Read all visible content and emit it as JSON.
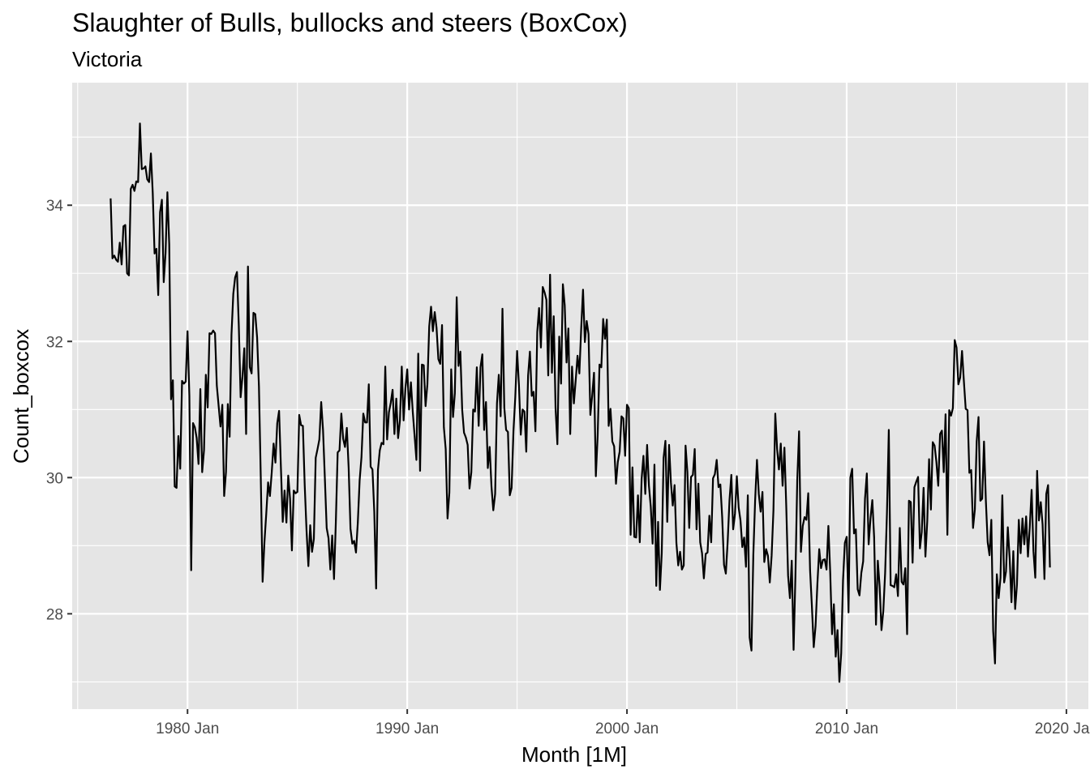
{
  "chart_data": {
    "type": "line",
    "title": "Slaughter of Bulls, bullocks and steers (BoxCox)",
    "subtitle": "Victoria",
    "xlabel": "Month [1M]",
    "ylabel": "Count_boxcox",
    "xlim": [
      "1974-10",
      "2021-01"
    ],
    "ylim": [
      26.6,
      35.8
    ],
    "x_ticks": [
      {
        "label": "1980 Jan",
        "date": "1980-01"
      },
      {
        "label": "1990 Jan",
        "date": "1990-01"
      },
      {
        "label": "2000 Jan",
        "date": "2000-01"
      },
      {
        "label": "2010 Jan",
        "date": "2010-01"
      },
      {
        "label": "2020 Jan",
        "date": "2020-01"
      }
    ],
    "y_ticks": [
      28,
      30,
      32,
      34
    ],
    "grid": true,
    "background": "#e5e5e5",
    "line_color": "#000000",
    "series": [
      {
        "start": "1976-07",
        "frequency": "monthly",
        "values": [
          34.1,
          33.22,
          33.26,
          33.2,
          33.17,
          33.45,
          33.13,
          33.69,
          33.71,
          33.0,
          32.97,
          34.24,
          34.3,
          34.21,
          34.35,
          34.34,
          35.2,
          34.53,
          34.54,
          34.57,
          34.38,
          34.34,
          34.76,
          34.18,
          33.29,
          33.36,
          32.68,
          33.9,
          34.08,
          32.87,
          33.3,
          34.19,
          33.43,
          31.15,
          31.43,
          29.87,
          29.85,
          30.61,
          30.13,
          31.42,
          31.38,
          31.41,
          32.15,
          31.2,
          28.64,
          30.8,
          30.74,
          30.58,
          30.2,
          31.3,
          30.08,
          30.4,
          31.51,
          31.03,
          32.12,
          32.11,
          32.16,
          32.12,
          31.35,
          31.05,
          30.75,
          31.07,
          29.73,
          30.08,
          31.08,
          30.6,
          32.1,
          32.7,
          32.94,
          33.02,
          32.23,
          31.18,
          31.48,
          31.9,
          30.64,
          33.1,
          31.62,
          31.53,
          32.42,
          32.4,
          32.06,
          31.34,
          30.0,
          28.47,
          29.05,
          29.47,
          29.93,
          29.73,
          30.08,
          30.5,
          30.22,
          30.8,
          30.98,
          30.15,
          29.35,
          29.81,
          29.34,
          30.03,
          29.69,
          28.93,
          29.81,
          29.77,
          29.79,
          30.92,
          30.77,
          30.76,
          29.89,
          29.22,
          28.7,
          29.3,
          28.91,
          29.1,
          30.29,
          30.42,
          30.56,
          31.11,
          30.7,
          29.99,
          29.26,
          29.11,
          28.65,
          29.15,
          28.51,
          29.35,
          30.37,
          30.4,
          30.94,
          30.57,
          30.45,
          30.73,
          30.14,
          29.25,
          29.03,
          29.07,
          28.9,
          29.34,
          29.96,
          30.3,
          30.94,
          30.81,
          30.81,
          31.37,
          30.16,
          30.12,
          29.49,
          28.37,
          30.11,
          30.4,
          30.51,
          30.49,
          31.63,
          30.56,
          30.96,
          31.1,
          31.29,
          30.64,
          31.16,
          30.58,
          30.84,
          31.63,
          30.84,
          31.31,
          31.59,
          31.0,
          31.4,
          30.97,
          30.62,
          30.26,
          31.82,
          30.1,
          31.66,
          31.65,
          31.05,
          31.37,
          32.22,
          32.51,
          32.15,
          32.43,
          32.2,
          31.74,
          31.67,
          32.24,
          30.74,
          30.42,
          29.4,
          29.78,
          31.59,
          30.89,
          31.24,
          32.65,
          31.64,
          31.85,
          31.0,
          30.66,
          30.59,
          30.48,
          29.84,
          30.08,
          31.0,
          30.97,
          31.62,
          30.76,
          31.62,
          31.81,
          30.7,
          31.11,
          30.14,
          30.45,
          29.87,
          29.52,
          29.76,
          31.09,
          31.51,
          30.9,
          32.48,
          31.03,
          30.7,
          30.67,
          29.74,
          29.85,
          30.68,
          31.18,
          31.86,
          31.36,
          30.63,
          31.0,
          30.97,
          30.38,
          31.5,
          31.85,
          31.2,
          31.26,
          30.68,
          32.14,
          32.49,
          31.91,
          32.8,
          32.72,
          32.61,
          31.5,
          32.98,
          31.54,
          32.37,
          31.02,
          30.49,
          32.07,
          31.38,
          32.84,
          32.53,
          31.69,
          32.19,
          30.64,
          31.63,
          31.09,
          31.43,
          31.79,
          31.53,
          32.19,
          32.76,
          31.99,
          32.3,
          32.11,
          30.92,
          31.2,
          31.54,
          30.02,
          30.62,
          31.66,
          31.62,
          32.33,
          32.04,
          32.32,
          30.76,
          31.01,
          30.53,
          30.46,
          29.91,
          30.23,
          30.38,
          30.9,
          30.87,
          30.32,
          31.07,
          31.02,
          29.16,
          30.15,
          29.13,
          29.12,
          29.74,
          29.05,
          29.98,
          30.32,
          29.76,
          30.48,
          29.88,
          29.57,
          29.03,
          30.19,
          28.41,
          29.35,
          28.35,
          28.89,
          30.29,
          30.54,
          29.35,
          30.48,
          29.93,
          29.59,
          29.89,
          29.04,
          28.71,
          28.91,
          28.65,
          28.71,
          30.47,
          30.08,
          29.26,
          30.01,
          30.04,
          30.42,
          29.24,
          29.91,
          29.05,
          28.89,
          28.52,
          28.88,
          28.9,
          29.44,
          29.05,
          29.99,
          30.05,
          30.26,
          29.86,
          29.9,
          29.42,
          28.72,
          28.59,
          29.06,
          29.67,
          30.04,
          29.24,
          29.47,
          30.02,
          29.56,
          29.37,
          28.98,
          29.12,
          28.69,
          29.74,
          27.65,
          27.46,
          28.86,
          29.67,
          30.26,
          29.76,
          29.5,
          29.79,
          28.76,
          28.95,
          28.85,
          28.46,
          28.85,
          29.52,
          30.94,
          30.42,
          30.12,
          30.5,
          29.88,
          30.44,
          29.57,
          28.56,
          28.23,
          28.78,
          27.47,
          28.55,
          29.96,
          30.68,
          28.91,
          29.29,
          29.42,
          29.38,
          29.77,
          28.64,
          28.11,
          27.51,
          27.82,
          28.44,
          28.95,
          28.67,
          28.79,
          28.8,
          28.65,
          29.29,
          28.61,
          27.7,
          28.14,
          27.37,
          27.76,
          27.0,
          27.42,
          28.49,
          29.04,
          29.13,
          28.02,
          30.0,
          30.13,
          29.18,
          29.24,
          28.36,
          28.27,
          28.6,
          28.77,
          29.69,
          30.06,
          29.02,
          29.4,
          29.67,
          29.12,
          27.84,
          28.78,
          28.4,
          27.76,
          28.04,
          28.6,
          29.49,
          30.7,
          28.42,
          28.41,
          28.39,
          28.58,
          28.26,
          29.26,
          28.47,
          28.43,
          28.67,
          27.7,
          29.66,
          29.64,
          28.75,
          29.86,
          29.94,
          30.01,
          28.96,
          29.2,
          29.85,
          28.84,
          29.36,
          30.27,
          29.53,
          30.52,
          30.47,
          30.23,
          29.88,
          30.64,
          30.69,
          30.08,
          30.93,
          29.16,
          30.99,
          30.91,
          31.02,
          32.02,
          31.91,
          31.37,
          31.47,
          31.86,
          31.42,
          31.01,
          30.99,
          30.07,
          30.11,
          29.26,
          29.53,
          30.53,
          30.89,
          29.66,
          29.69,
          30.53,
          29.67,
          29.05,
          28.86,
          29.38,
          27.75,
          27.27,
          28.58,
          28.23,
          28.53,
          29.74,
          28.46,
          28.62,
          29.27,
          28.82,
          28.17,
          28.92,
          28.07,
          28.43,
          29.38,
          28.89,
          29.4,
          29.02,
          29.43,
          28.84,
          29.28,
          29.82,
          28.92,
          28.53,
          30.1,
          29.37,
          29.64,
          29.31,
          28.51,
          29.76,
          29.89,
          28.68
        ]
      }
    ]
  }
}
